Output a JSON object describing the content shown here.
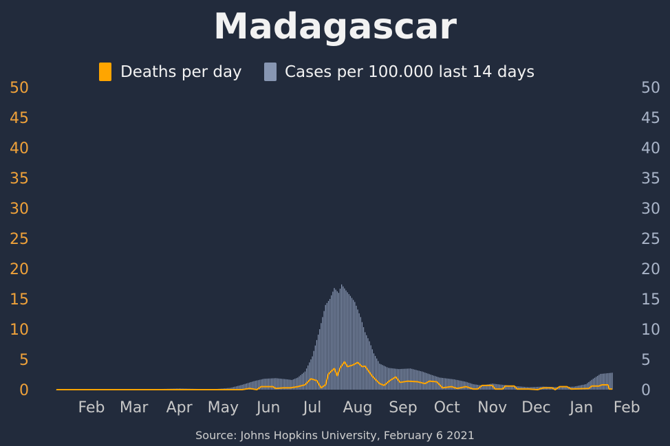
{
  "colors": {
    "background": "#222b3c",
    "deaths": "#ffa500",
    "cases": "#8796b2",
    "text": "#f2f2f2",
    "left_axis": "#f0a23a",
    "right_axis": "#a9b4c8",
    "x_axis": "#c8c8c8",
    "source": "#cfcfcf"
  },
  "chart_data": {
    "type": "bar",
    "title": "Madagascar",
    "source": "Source: Johns Hopkins University, February 6 2021",
    "legend": [
      "Deaths per day",
      "Cases per 100.000 last 14 days"
    ],
    "legend_placement": "top-center",
    "grid": false,
    "x_ticks": [
      "Feb",
      "Mar",
      "Apr",
      "May",
      "Jun",
      "Jul",
      "Aug",
      "Sep",
      "Oct",
      "Nov",
      "Dec",
      "Jan",
      "Feb"
    ],
    "xlim": [
      "2020-01-22",
      "2021-02-05"
    ],
    "y_left_ticks": [
      "0",
      "5",
      "10",
      "15",
      "20",
      "25",
      "30",
      "35",
      "40",
      "45",
      "50"
    ],
    "y_right_ticks": [
      "0",
      "5",
      "10",
      "15",
      "20",
      "25",
      "30",
      "35",
      "40",
      "45",
      "50"
    ],
    "ylim": [
      0,
      50
    ],
    "series": [
      {
        "name": "Cases per 100.000 last 14 days",
        "type": "bar",
        "points": [
          [
            "2020-01-22",
            0
          ],
          [
            "2020-03-20",
            0
          ],
          [
            "2020-04-01",
            0.1
          ],
          [
            "2020-04-15",
            0.2
          ],
          [
            "2020-04-30",
            0.1
          ],
          [
            "2020-05-10",
            0.1
          ],
          [
            "2020-05-20",
            0.3
          ],
          [
            "2020-05-28",
            0.8
          ],
          [
            "2020-06-05",
            1.4
          ],
          [
            "2020-06-12",
            1.8
          ],
          [
            "2020-06-20",
            1.9
          ],
          [
            "2020-06-28",
            1.7
          ],
          [
            "2020-07-01",
            1.6
          ],
          [
            "2020-07-05",
            2.0
          ],
          [
            "2020-07-10",
            3.0
          ],
          [
            "2020-07-15",
            5.5
          ],
          [
            "2020-07-20",
            10.0
          ],
          [
            "2020-07-24",
            14.0
          ],
          [
            "2020-07-27",
            15.0
          ],
          [
            "2020-07-30",
            16.8
          ],
          [
            "2020-08-02",
            16.0
          ],
          [
            "2020-08-04",
            17.4
          ],
          [
            "2020-08-07",
            16.4
          ],
          [
            "2020-08-10",
            15.5
          ],
          [
            "2020-08-13",
            14.5
          ],
          [
            "2020-08-17",
            12.0
          ],
          [
            "2020-08-20",
            9.5
          ],
          [
            "2020-08-23",
            8.0
          ],
          [
            "2020-08-26",
            6.0
          ],
          [
            "2020-08-30",
            4.3
          ],
          [
            "2020-09-05",
            3.6
          ],
          [
            "2020-09-12",
            3.4
          ],
          [
            "2020-09-20",
            3.5
          ],
          [
            "2020-09-28",
            3.0
          ],
          [
            "2020-10-05",
            2.4
          ],
          [
            "2020-10-10",
            2.0
          ],
          [
            "2020-10-20",
            1.7
          ],
          [
            "2020-10-28",
            1.3
          ],
          [
            "2020-11-02",
            0.9
          ],
          [
            "2020-11-08",
            0.7
          ],
          [
            "2020-11-15",
            1.0
          ],
          [
            "2020-11-22",
            0.8
          ],
          [
            "2020-11-30",
            0.6
          ],
          [
            "2020-12-10",
            0.4
          ],
          [
            "2020-12-20",
            0.5
          ],
          [
            "2020-12-31",
            0.4
          ],
          [
            "2021-01-10",
            0.5
          ],
          [
            "2021-01-18",
            0.9
          ],
          [
            "2021-01-23",
            1.8
          ],
          [
            "2021-01-28",
            2.6
          ],
          [
            "2021-02-05",
            2.8
          ]
        ]
      },
      {
        "name": "Deaths per day",
        "type": "line",
        "points": [
          [
            "2020-01-22",
            0
          ],
          [
            "2020-05-28",
            0
          ],
          [
            "2020-06-02",
            0.2
          ],
          [
            "2020-06-07",
            0
          ],
          [
            "2020-06-10",
            0.5
          ],
          [
            "2020-06-18",
            0.5
          ],
          [
            "2020-06-20",
            0.2
          ],
          [
            "2020-06-25",
            0.3
          ],
          [
            "2020-06-30",
            0.3
          ],
          [
            "2020-07-05",
            0.5
          ],
          [
            "2020-07-10",
            0.8
          ],
          [
            "2020-07-14",
            1.8
          ],
          [
            "2020-07-18",
            1.5
          ],
          [
            "2020-07-21",
            0.3
          ],
          [
            "2020-07-24",
            0.8
          ],
          [
            "2020-07-26",
            2.6
          ],
          [
            "2020-07-30",
            3.5
          ],
          [
            "2020-08-01",
            2.3
          ],
          [
            "2020-08-03",
            3.6
          ],
          [
            "2020-08-06",
            4.6
          ],
          [
            "2020-08-08",
            3.8
          ],
          [
            "2020-08-12",
            4.1
          ],
          [
            "2020-08-15",
            4.5
          ],
          [
            "2020-08-18",
            3.8
          ],
          [
            "2020-08-20",
            3.9
          ],
          [
            "2020-08-25",
            2.2
          ],
          [
            "2020-08-30",
            1.0
          ],
          [
            "2020-09-02",
            0.7
          ],
          [
            "2020-09-06",
            1.5
          ],
          [
            "2020-09-10",
            2.1
          ],
          [
            "2020-09-13",
            1.2
          ],
          [
            "2020-09-18",
            1.4
          ],
          [
            "2020-09-25",
            1.3
          ],
          [
            "2020-09-30",
            1.0
          ],
          [
            "2020-10-03",
            1.4
          ],
          [
            "2020-10-08",
            1.3
          ],
          [
            "2020-10-12",
            0.3
          ],
          [
            "2020-10-18",
            0.5
          ],
          [
            "2020-10-22",
            0.2
          ],
          [
            "2020-10-28",
            0.5
          ],
          [
            "2020-11-02",
            0.1
          ],
          [
            "2020-11-05",
            0.1
          ],
          [
            "2020-11-08",
            0.7
          ],
          [
            "2020-11-15",
            0.7
          ],
          [
            "2020-11-17",
            0.1
          ],
          [
            "2020-11-22",
            0.1
          ],
          [
            "2020-11-24",
            0.6
          ],
          [
            "2020-11-30",
            0.6
          ],
          [
            "2020-12-02",
            0.1
          ],
          [
            "2020-12-10",
            0.1
          ],
          [
            "2020-12-16",
            0.0
          ],
          [
            "2020-12-20",
            0.3
          ],
          [
            "2020-12-26",
            0.3
          ],
          [
            "2020-12-28",
            0.0
          ],
          [
            "2020-12-31",
            0.5
          ],
          [
            "2021-01-05",
            0.5
          ],
          [
            "2021-01-08",
            0.1
          ],
          [
            "2021-01-20",
            0.2
          ],
          [
            "2021-01-22",
            0.6
          ],
          [
            "2021-01-27",
            0.6
          ],
          [
            "2021-01-29",
            0.8
          ],
          [
            "2021-02-02",
            0.8
          ],
          [
            "2021-02-03",
            0.1
          ],
          [
            "2021-02-05",
            0.1
          ]
        ]
      }
    ]
  }
}
